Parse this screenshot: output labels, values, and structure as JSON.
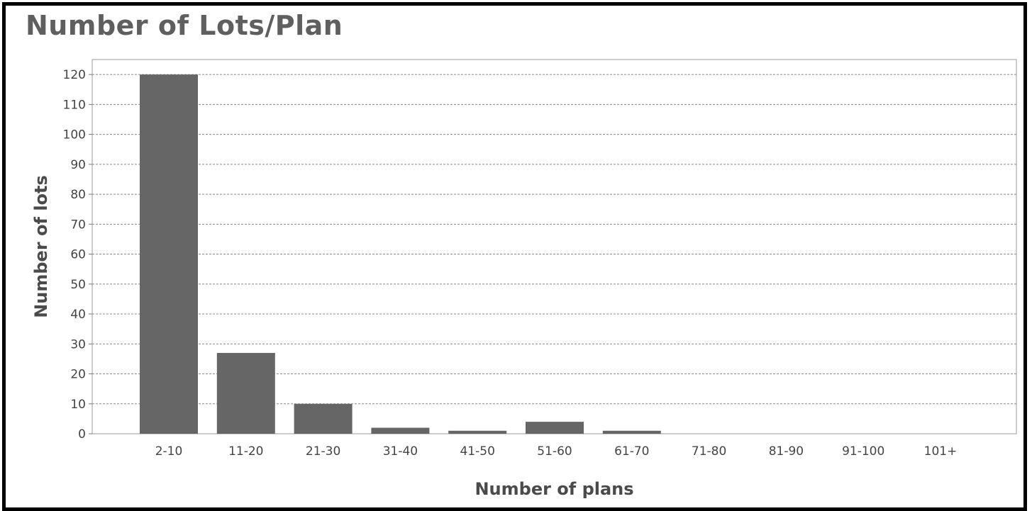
{
  "title": "Number of Lots/Plan",
  "chart_data": {
    "type": "bar",
    "title": "Number of Lots/Plan",
    "xlabel": "Number of plans",
    "ylabel": "Number of lots",
    "categories": [
      "2-10",
      "11-20",
      "21-30",
      "31-40",
      "41-50",
      "51-60",
      "61-70",
      "71-80",
      "81-90",
      "91-100",
      "101+"
    ],
    "values": [
      120,
      27,
      10,
      2,
      1,
      4,
      1,
      0,
      0,
      0,
      0
    ],
    "ylim": [
      0,
      125
    ],
    "yticks": [
      0,
      10,
      20,
      30,
      40,
      50,
      60,
      70,
      80,
      90,
      100,
      110,
      120
    ],
    "grid": true,
    "legend": "none",
    "colors": {
      "bar": "#666666",
      "grid": "#8a8a8a",
      "frame": "#9a9a9a"
    }
  }
}
